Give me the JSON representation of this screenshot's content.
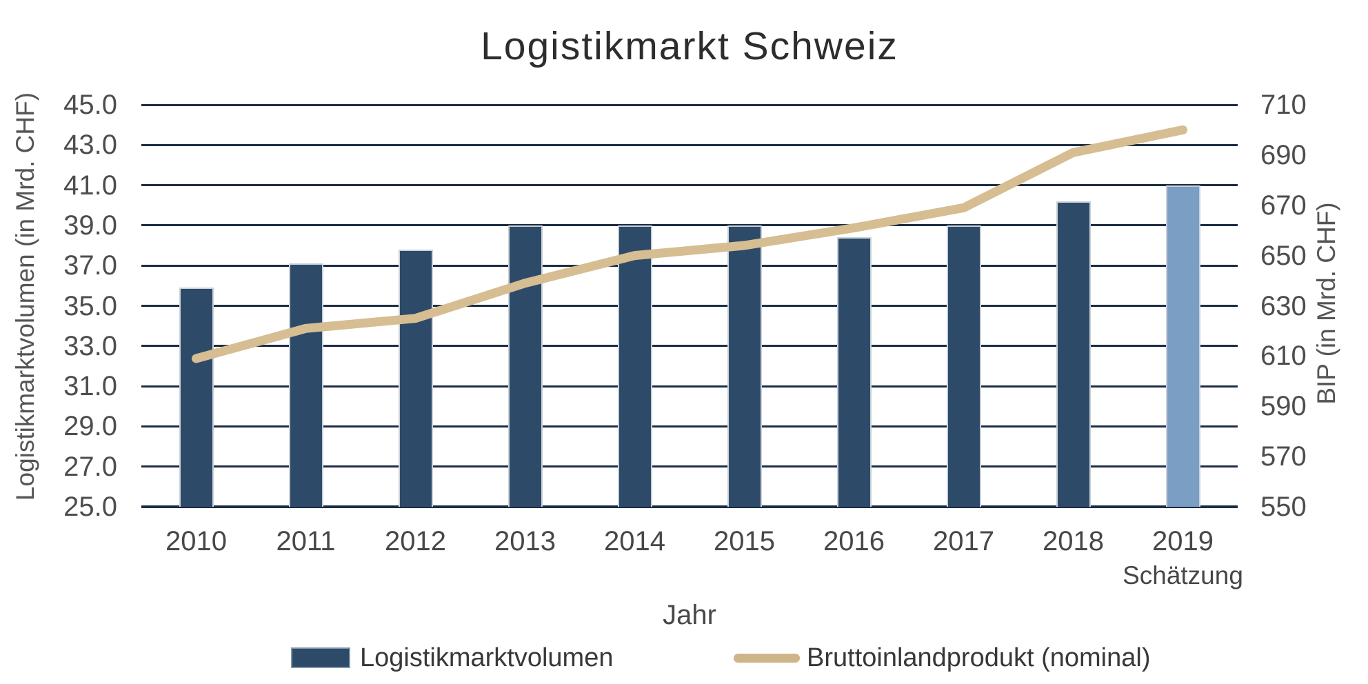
{
  "chart_data": {
    "type": "bar+line",
    "title": "Logistikmarkt Schweiz",
    "xlabel": "Jahr",
    "ylabel_left": "Logistikmarktvolumen (in Mrd. CHF)",
    "ylabel_right": "BIP (in Mrd. CHF)",
    "categories": [
      "2010",
      "2011",
      "2012",
      "2013",
      "2014",
      "2015",
      "2016",
      "2017",
      "2018",
      "2019"
    ],
    "category_sublabels": {
      "9": "Schätzung"
    },
    "estimate_bar_index": 9,
    "series": [
      {
        "name": "Logistikmarktvolumen",
        "type": "bar",
        "axis": "left",
        "values": [
          35.9,
          37.1,
          37.8,
          39.0,
          39.0,
          39.0,
          38.4,
          39.0,
          40.2,
          41.0
        ]
      },
      {
        "name": "Bruttoinlandprodukt (nominal)",
        "type": "line",
        "axis": "right",
        "values": [
          609,
          621,
          625,
          639,
          650,
          654,
          661,
          669,
          691,
          700
        ]
      }
    ],
    "ylim_left": [
      25.0,
      45.0
    ],
    "ylim_right": [
      550,
      710
    ],
    "left_ticks": [
      "45.0",
      "43.0",
      "41.0",
      "39.0",
      "37.0",
      "35.0",
      "33.0",
      "31.0",
      "29.0",
      "27.0",
      "25.0"
    ],
    "right_ticks": [
      "710",
      "690",
      "670",
      "650",
      "630",
      "610",
      "590",
      "570",
      "550"
    ],
    "grid": "horizontal",
    "legend_position": "bottom"
  },
  "legend": {
    "items": [
      {
        "label": "Logistikmarktvolumen",
        "type": "bar"
      },
      {
        "label": "Bruttoinlandprodukt (nominal)",
        "type": "line"
      }
    ]
  },
  "styles": {
    "bar_color": "#2d4a68",
    "bar_estimate_color": "#7b9ec4",
    "bar_border_color": "#cad1d9",
    "line_color": "#d6bd92",
    "legend_line_color": "#cdb489",
    "gridline_color": "#1b2c42",
    "title_color": "#2d2d2d",
    "tick_color": "#4d4d4d",
    "axis_title_color": "#555555",
    "legend_text_color": "#383838",
    "background_color": "#ffffff"
  }
}
